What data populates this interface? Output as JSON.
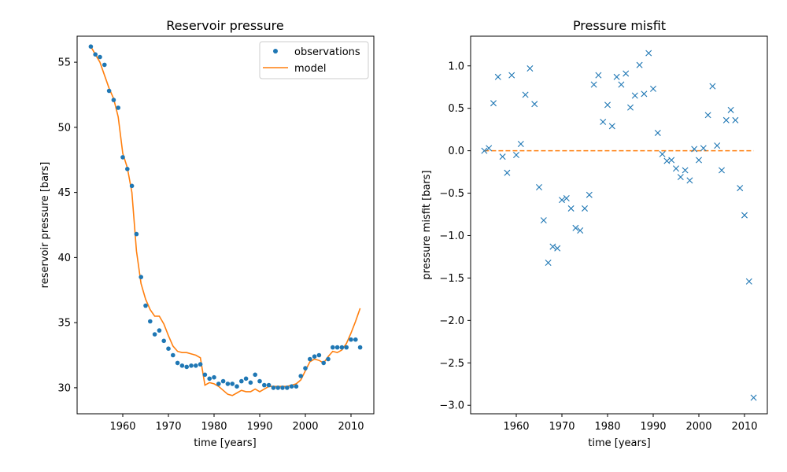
{
  "chart_data": [
    {
      "type": "line",
      "title": "Reservoir pressure",
      "xlabel": "time [years]",
      "ylabel": "reservoir pressure [bars]",
      "xlim": [
        1950,
        2015
      ],
      "ylim": [
        28,
        57
      ],
      "xticks": [
        1960,
        1970,
        1980,
        1990,
        2000,
        2010
      ],
      "yticks": [
        30,
        35,
        40,
        45,
        50,
        55
      ],
      "legend_position": "top-right",
      "colors": {
        "observations": "#1f77b4",
        "model": "#ff7f0e"
      },
      "series": [
        {
          "name": "observations",
          "style": "points",
          "x": [
            1953,
            1954,
            1955,
            1956,
            1957,
            1958,
            1959,
            1960,
            1961,
            1962,
            1963,
            1964,
            1965,
            1966,
            1967,
            1968,
            1969,
            1970,
            1971,
            1972,
            1973,
            1974,
            1975,
            1976,
            1977,
            1978,
            1979,
            1980,
            1981,
            1982,
            1983,
            1984,
            1985,
            1986,
            1987,
            1988,
            1989,
            1990,
            1991,
            1992,
            1993,
            1994,
            1995,
            1996,
            1997,
            1998,
            1999,
            2000,
            2001,
            2002,
            2003,
            2004,
            2005,
            2006,
            2007,
            2008,
            2009,
            2010,
            2011,
            2012
          ],
          "y": [
            56.2,
            55.6,
            55.4,
            54.8,
            52.8,
            52.1,
            51.5,
            47.7,
            46.8,
            45.5,
            41.8,
            38.5,
            36.3,
            35.1,
            34.1,
            34.4,
            33.6,
            33.0,
            32.5,
            31.9,
            31.7,
            31.6,
            31.7,
            31.7,
            31.8,
            31.0,
            30.7,
            30.8,
            30.3,
            30.5,
            30.3,
            30.3,
            30.1,
            30.5,
            30.7,
            30.4,
            31.0,
            30.5,
            30.2,
            30.2,
            30.0,
            30.0,
            30.0,
            30.0,
            30.1,
            30.1,
            30.9,
            31.5,
            32.2,
            32.4,
            32.5,
            31.9,
            32.2,
            33.1,
            33.1,
            33.1,
            33.1,
            33.7,
            33.7,
            33.1
          ]
        },
        {
          "name": "model",
          "style": "line",
          "x": [
            1953,
            1954,
            1955,
            1956,
            1957,
            1958,
            1959,
            1960,
            1961,
            1962,
            1963,
            1964,
            1965,
            1966,
            1967,
            1968,
            1969,
            1970,
            1971,
            1972,
            1973,
            1974,
            1975,
            1976,
            1977,
            1978,
            1979,
            1980,
            1981,
            1982,
            1983,
            1984,
            1985,
            1986,
            1987,
            1988,
            1989,
            1990,
            1991,
            1992,
            1993,
            1994,
            1995,
            1996,
            1997,
            1998,
            1999,
            2000,
            2001,
            2002,
            2003,
            2004,
            2005,
            2006,
            2007,
            2008,
            2009,
            2010,
            2011,
            2012
          ],
          "y": [
            56.2,
            55.6,
            55.0,
            54.0,
            53.0,
            52.2,
            50.8,
            48.0,
            46.9,
            45.0,
            40.5,
            38.0,
            36.8,
            36.0,
            35.5,
            35.5,
            34.9,
            34.0,
            33.2,
            32.8,
            32.7,
            32.7,
            32.6,
            32.5,
            32.3,
            30.2,
            30.4,
            30.3,
            30.1,
            29.8,
            29.5,
            29.4,
            29.6,
            29.8,
            29.7,
            29.7,
            29.9,
            29.7,
            29.9,
            30.1,
            30.1,
            30.1,
            30.1,
            30.1,
            30.2,
            30.3,
            30.6,
            31.3,
            32.0,
            32.2,
            32.1,
            31.9,
            32.4,
            32.8,
            32.7,
            32.9,
            33.4,
            34.2,
            35.1,
            36.1
          ]
        }
      ]
    },
    {
      "type": "scatter",
      "title": "Pressure misfit",
      "xlabel": "time [years]",
      "ylabel": "pressure misfit [bars]",
      "xlim": [
        1950,
        2015
      ],
      "ylim": [
        -3.1,
        1.35
      ],
      "xticks": [
        1960,
        1970,
        1980,
        1990,
        2000,
        2010
      ],
      "yticks": [
        -3.0,
        -2.5,
        -2.0,
        -1.5,
        -1.0,
        -0.5,
        0.0,
        0.5,
        1.0
      ],
      "ytick_labels": [
        "−3.0",
        "−2.5",
        "−2.0",
        "−1.5",
        "−1.0",
        "−0.5",
        "0.0",
        "0.5",
        "1.0"
      ],
      "colors": {
        "misfit": "#1f77b4",
        "zero_line": "#ff7f0e"
      },
      "zero_line": {
        "x": [
          1953,
          2012
        ],
        "y": 0
      },
      "series": [
        {
          "style": "x-markers",
          "x": [
            1953,
            1954,
            1955,
            1956,
            1957,
            1958,
            1959,
            1960,
            1961,
            1962,
            1963,
            1964,
            1965,
            1966,
            1967,
            1968,
            1969,
            1970,
            1971,
            1972,
            1973,
            1974,
            1975,
            1976,
            1977,
            1978,
            1979,
            1980,
            1981,
            1982,
            1983,
            1984,
            1985,
            1986,
            1987,
            1988,
            1989,
            1990,
            1991,
            1992,
            1993,
            1994,
            1995,
            1996,
            1997,
            1998,
            1999,
            2000,
            2001,
            2002,
            2003,
            2004,
            2005,
            2006,
            2007,
            2008,
            2009,
            2010,
            2011,
            2012
          ],
          "y": [
            0.0,
            0.03,
            0.56,
            0.87,
            -0.07,
            -0.26,
            0.89,
            -0.05,
            0.08,
            0.66,
            0.97,
            0.55,
            -0.43,
            -0.82,
            -1.32,
            -1.13,
            -1.15,
            -0.58,
            -0.56,
            -0.68,
            -0.91,
            -0.94,
            -0.68,
            -0.52,
            0.78,
            0.89,
            0.34,
            0.54,
            0.29,
            0.87,
            0.78,
            0.91,
            0.51,
            0.65,
            1.01,
            0.67,
            1.15,
            0.73,
            0.21,
            -0.04,
            -0.12,
            -0.11,
            -0.21,
            -0.31,
            -0.23,
            -0.35,
            0.02,
            -0.11,
            0.03,
            0.42,
            0.76,
            0.06,
            -0.23,
            0.36,
            0.48,
            0.36,
            -0.44,
            -0.76,
            -1.54,
            -2.91
          ]
        }
      ]
    }
  ]
}
